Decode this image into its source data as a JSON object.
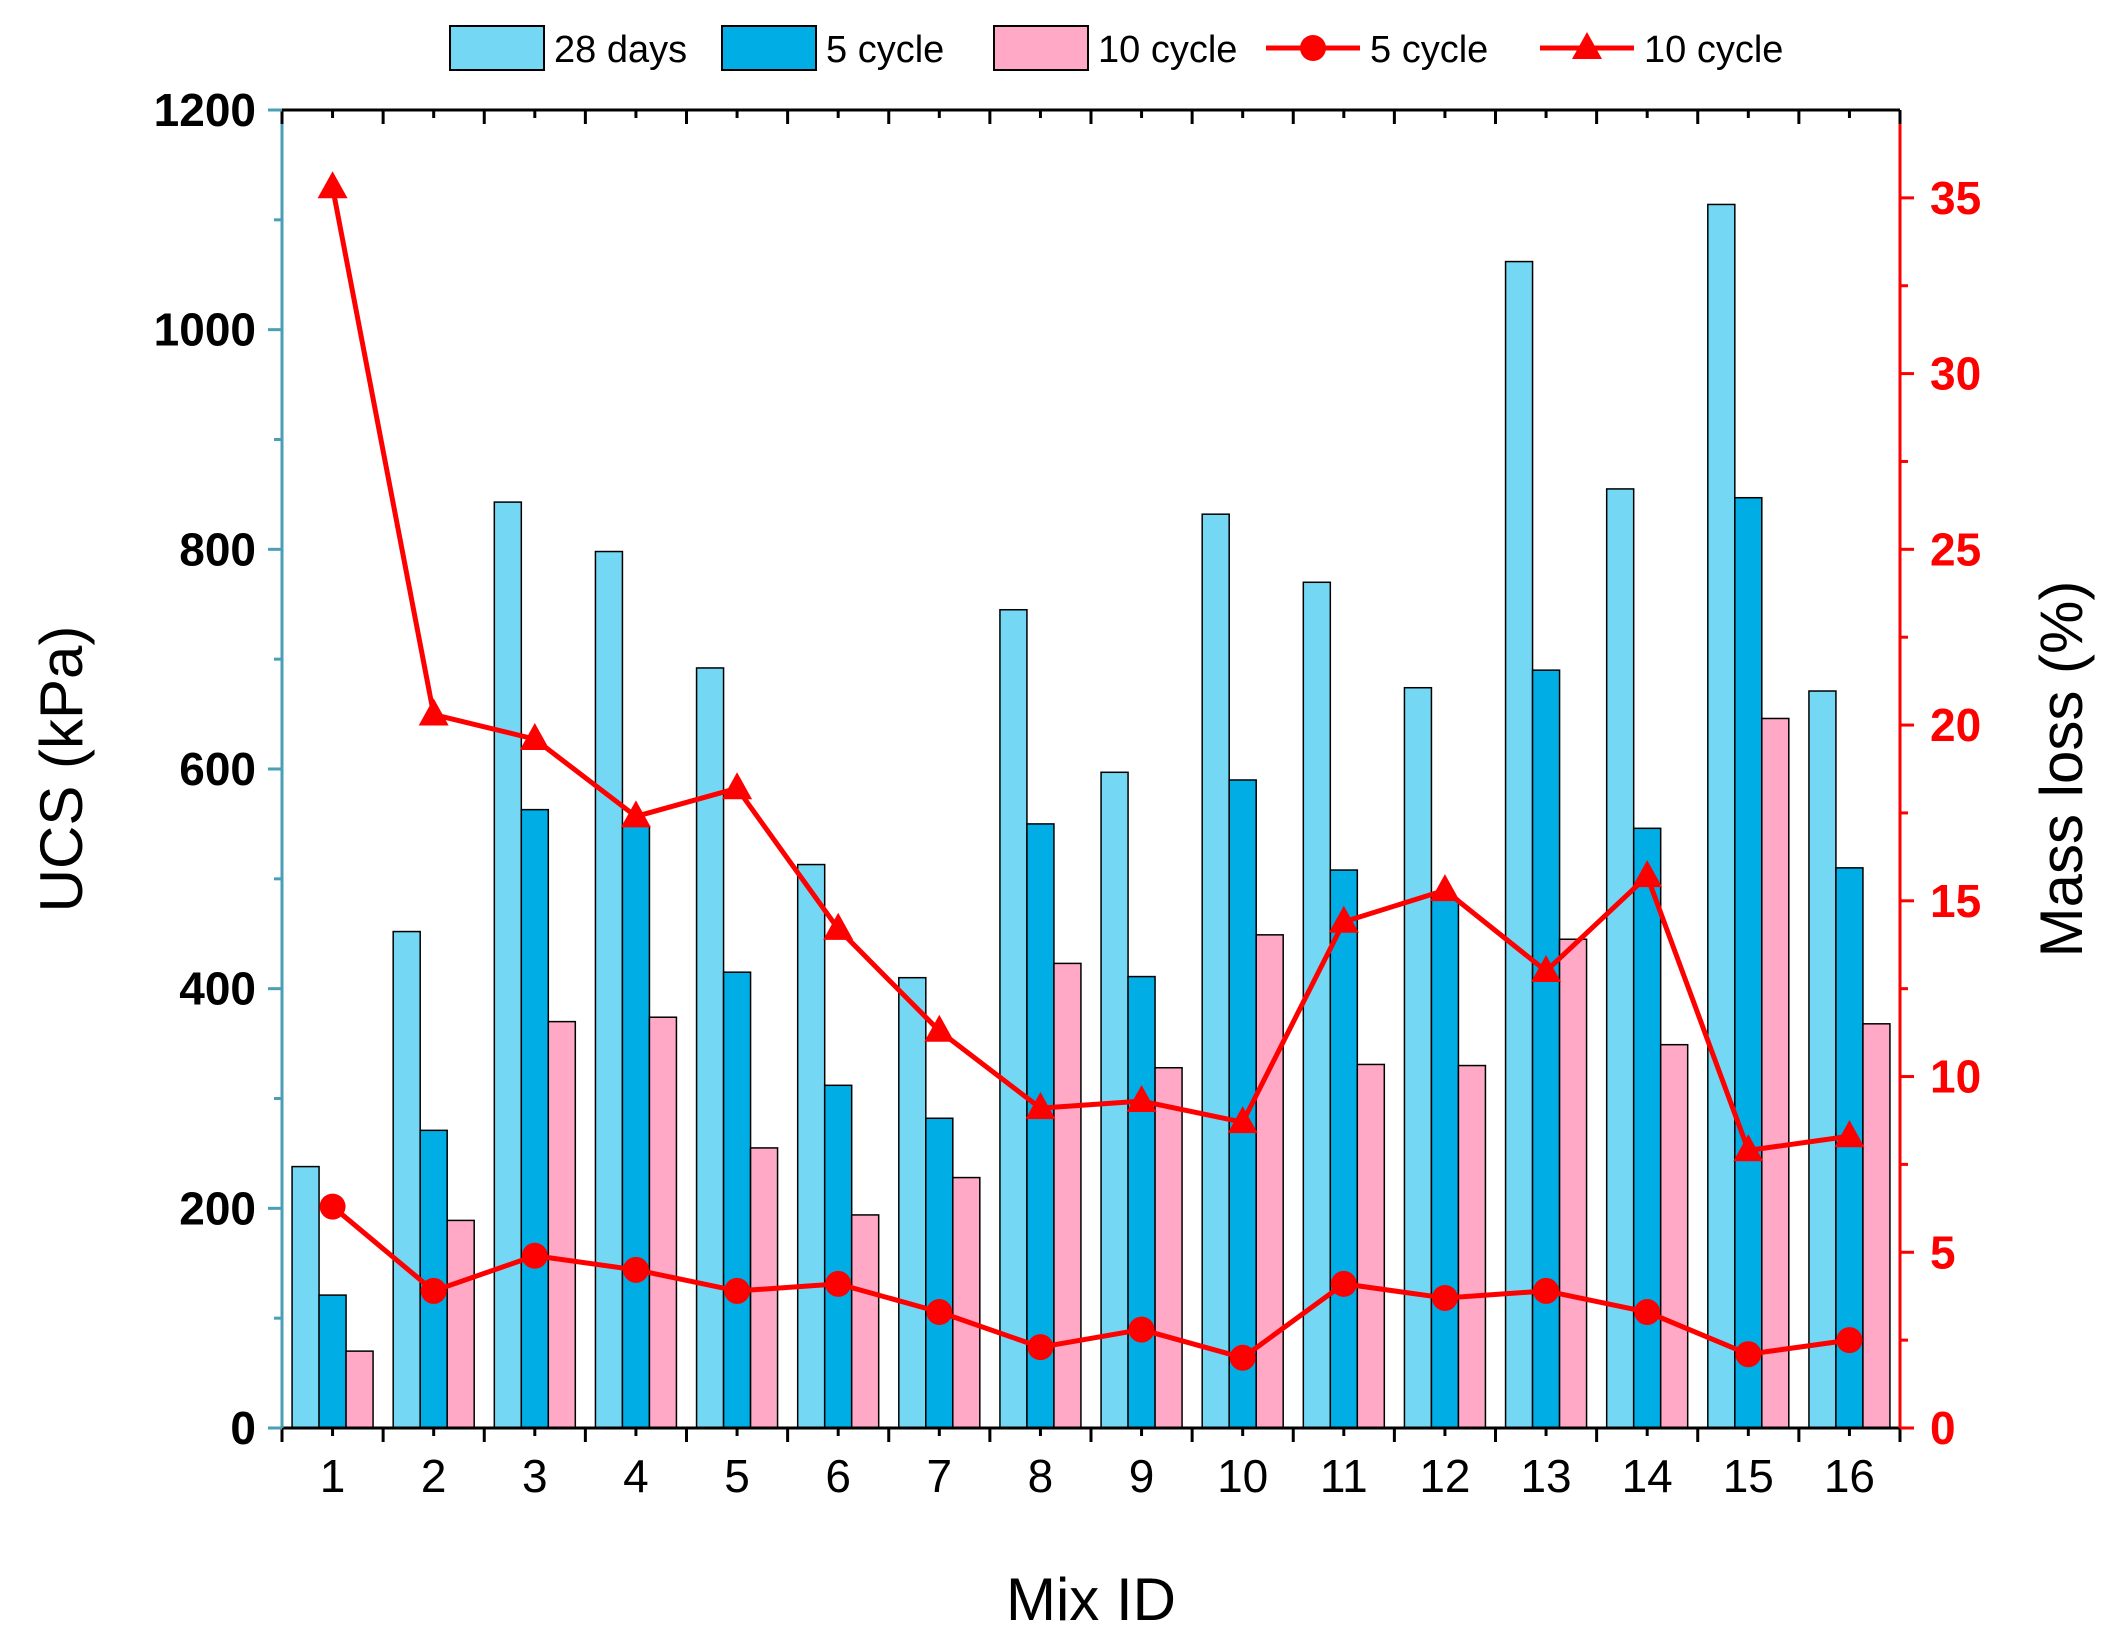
{
  "chart_data": {
    "type": "bar",
    "xlabel": "Mix ID",
    "ylabel_left": "UCS (kPa)",
    "ylabel_right": "Mass loss (%)",
    "categories": [
      "1",
      "2",
      "3",
      "4",
      "5",
      "6",
      "7",
      "8",
      "9",
      "10",
      "11",
      "12",
      "13",
      "14",
      "15",
      "16"
    ],
    "ylim_left": [
      0,
      1200
    ],
    "ylim_right": [
      0,
      37.5
    ],
    "yticks_left": [
      "0",
      "200",
      "400",
      "600",
      "800",
      "1000",
      "1200"
    ],
    "yticks_right": [
      "0",
      "5",
      "10",
      "15",
      "20",
      "25",
      "30",
      "35"
    ],
    "grid": false,
    "legend_position": "top",
    "bar_series": [
      {
        "name": "28 days",
        "color": "#74d8f4",
        "values": [
          238,
          452,
          843,
          798,
          692,
          513,
          410,
          745,
          597,
          832,
          770,
          674,
          1062,
          855,
          1114,
          671
        ]
      },
      {
        "name": " 5 cycle",
        "color": "#00aee5",
        "values": [
          121,
          271,
          563,
          548,
          415,
          312,
          282,
          550,
          411,
          590,
          508,
          482,
          690,
          546,
          847,
          510
        ]
      },
      {
        "name": "10 cycle",
        "color": "#ffa9c7",
        "values": [
          70,
          189,
          370,
          374,
          255,
          194,
          228,
          423,
          328,
          449,
          331,
          330,
          445,
          349,
          646,
          368
        ]
      }
    ],
    "line_series": [
      {
        "name": " 5 cycle",
        "color": "#ff0000",
        "marker": "circle",
        "values": [
          6.3,
          3.9,
          4.9,
          4.5,
          3.9,
          4.1,
          3.3,
          2.3,
          2.8,
          2.0,
          4.1,
          3.7,
          3.9,
          3.3,
          2.1,
          2.5
        ]
      },
      {
        "name": "10 cycle",
        "color": "#ff0000",
        "marker": "triangle",
        "values": [
          35.3,
          20.3,
          19.6,
          17.4,
          18.2,
          14.2,
          11.3,
          9.1,
          9.3,
          8.7,
          14.4,
          15.3,
          13.0,
          15.7,
          7.9,
          8.3
        ]
      }
    ],
    "axis_colors": {
      "left": "#4a9fb5",
      "right": "#ff0000",
      "frame": "#000000"
    }
  }
}
